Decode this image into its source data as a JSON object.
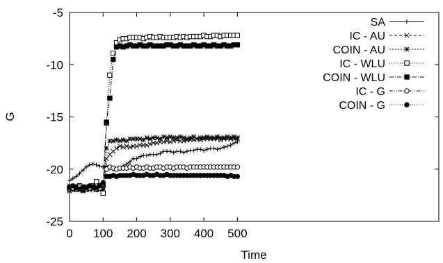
{
  "chart_data": {
    "type": "line",
    "title": "",
    "xlabel": "Time",
    "ylabel": "G",
    "xlim": [
      0,
      1100
    ],
    "ylim": [
      -25,
      -5
    ],
    "x_ticks": [
      "0",
      "100",
      "200",
      "300",
      "400",
      "500"
    ],
    "x_tick_values": [
      0,
      100,
      200,
      300,
      400,
      500
    ],
    "y_ticks": [
      "-5",
      "-10",
      "-15",
      "-20",
      "-25"
    ],
    "y_tick_values": [
      -5,
      -10,
      -15,
      -20,
      -25
    ],
    "grid": false,
    "legend_position": "top-right",
    "x": [
      0,
      10,
      20,
      30,
      40,
      50,
      60,
      70,
      80,
      90,
      100,
      110,
      120,
      130,
      140,
      150,
      160,
      170,
      180,
      190,
      200,
      210,
      220,
      230,
      240,
      250,
      260,
      270,
      280,
      290,
      300,
      310,
      320,
      330,
      340,
      350,
      360,
      370,
      380,
      390,
      400,
      410,
      420,
      430,
      440,
      450,
      460,
      470,
      480,
      490,
      500
    ],
    "series": [
      {
        "name": "SA",
        "marker": "plus",
        "dash": "",
        "values": [
          -21.1,
          -20.9,
          -20.7,
          -20.4,
          -20.1,
          -19.8,
          -19.6,
          -19.5,
          -19.6,
          -19.7,
          -19.8,
          -19.7,
          -19.9,
          -20.0,
          -20.0,
          -19.9,
          -19.7,
          -19.5,
          -19.3,
          -19.0,
          -19.0,
          -18.8,
          -18.7,
          -18.7,
          -18.6,
          -18.6,
          -18.6,
          -18.5,
          -18.3,
          -18.3,
          -18.3,
          -18.4,
          -18.3,
          -18.3,
          -18.4,
          -18.3,
          -18.2,
          -18.2,
          -18.1,
          -18.1,
          -18.2,
          -18.1,
          -18.0,
          -18.0,
          -18.1,
          -18.0,
          -17.9,
          -17.8,
          -17.7,
          -17.5,
          -17.4
        ]
      },
      {
        "name": "IC - AU",
        "marker": "x",
        "dash": "4,3",
        "values": [
          -21.6,
          -21.7,
          -21.8,
          -21.9,
          -21.7,
          -21.9,
          -22.0,
          -21.8,
          -21.9,
          -22.0,
          -22.0,
          -19.0,
          -18.6,
          -18.3,
          -18.0,
          -17.8,
          -17.9,
          -17.8,
          -17.9,
          -17.8,
          -17.8,
          -17.7,
          -17.7,
          -17.7,
          -17.6,
          -17.5,
          -17.5,
          -17.4,
          -17.4,
          -17.3,
          -17.4,
          -17.3,
          -17.2,
          -17.3,
          -17.3,
          -17.2,
          -17.2,
          -17.2,
          -17.1,
          -17.2,
          -17.1,
          -17.1,
          -17.1,
          -17.1,
          -17.1,
          -17.2,
          -17.1,
          -17.1,
          -17.1,
          -17.1,
          -17.1
        ]
      },
      {
        "name": "COIN - AU",
        "marker": "star",
        "dash": "2,2",
        "values": [
          -22.1,
          -21.9,
          -22.0,
          -21.8,
          -22.1,
          -21.9,
          -21.7,
          -21.9,
          -22.0,
          -21.8,
          -21.9,
          -18.0,
          -17.3,
          -17.3,
          -17.2,
          -17.3,
          -17.2,
          -17.3,
          -17.1,
          -17.1,
          -17.1,
          -17.1,
          -17.2,
          -17.0,
          -17.1,
          -17.0,
          -17.0,
          -17.1,
          -16.9,
          -17.0,
          -16.9,
          -17.0,
          -17.0,
          -16.9,
          -17.0,
          -17.1,
          -17.0,
          -16.9,
          -17.1,
          -17.0,
          -17.0,
          -16.9,
          -17.0,
          -17.0,
          -16.9,
          -17.0,
          -17.0,
          -16.9,
          -17.0,
          -16.9,
          -17.0
        ]
      },
      {
        "name": "IC - WLU",
        "marker": "square-open",
        "dash": "1,2",
        "values": [
          -21.9,
          -21.8,
          -21.9,
          -21.6,
          -21.8,
          -21.7,
          -21.8,
          -21.6,
          -21.2,
          -21.6,
          -22.3,
          -15.6,
          -11.0,
          -8.9,
          -7.9,
          -7.6,
          -7.5,
          -7.5,
          -7.4,
          -7.4,
          -7.4,
          -7.4,
          -7.5,
          -7.4,
          -7.3,
          -7.4,
          -7.4,
          -7.3,
          -7.4,
          -7.4,
          -7.4,
          -7.4,
          -7.3,
          -7.4,
          -7.3,
          -7.4,
          -7.3,
          -7.3,
          -7.3,
          -7.3,
          -7.2,
          -7.3,
          -7.3,
          -7.2,
          -7.2,
          -7.3,
          -7.2,
          -7.2,
          -7.2,
          -7.2,
          -7.2
        ]
      },
      {
        "name": "COIN - WLU",
        "marker": "square-filled",
        "dash": "6,2,1,2",
        "values": [
          -21.8,
          -21.9,
          -21.7,
          -21.8,
          -22.0,
          -21.9,
          -21.8,
          -21.7,
          -21.9,
          -21.8,
          -21.5,
          -15.5,
          -13.2,
          -9.5,
          -8.3,
          -8.2,
          -8.3,
          -8.2,
          -8.1,
          -8.2,
          -8.2,
          -8.1,
          -8.2,
          -8.2,
          -8.1,
          -8.2,
          -8.2,
          -8.2,
          -8.2,
          -8.1,
          -8.1,
          -8.2,
          -8.2,
          -8.1,
          -8.2,
          -8.2,
          -8.2,
          -8.1,
          -8.2,
          -8.2,
          -8.1,
          -8.2,
          -8.2,
          -8.1,
          -8.2,
          -8.2,
          -8.1,
          -8.2,
          -8.2,
          -8.1,
          -8.1
        ]
      },
      {
        "name": "IC - G",
        "marker": "circle-open",
        "dash": "5,2,1,2,1,2",
        "values": [
          -21.7,
          -21.8,
          -21.9,
          -21.7,
          -21.8,
          -21.9,
          -21.8,
          -21.7,
          -21.9,
          -21.8,
          -21.4,
          -20.0,
          -19.8,
          -19.9,
          -20.0,
          -19.9,
          -19.9,
          -19.9,
          -19.8,
          -19.9,
          -19.8,
          -19.9,
          -19.9,
          -19.8,
          -19.9,
          -19.9,
          -19.8,
          -19.8,
          -19.9,
          -19.8,
          -19.8,
          -19.9,
          -19.8,
          -19.8,
          -19.8,
          -19.9,
          -19.8,
          -19.8,
          -19.8,
          -19.8,
          -19.8,
          -19.8,
          -19.8,
          -19.8,
          -19.8,
          -19.8,
          -19.8,
          -19.8,
          -19.8,
          -19.8,
          -19.8
        ]
      },
      {
        "name": "COIN - G",
        "marker": "circle-filled",
        "dash": "1,2",
        "values": [
          -21.7,
          -21.6,
          -21.8,
          -21.9,
          -21.7,
          -21.8,
          -21.6,
          -21.7,
          -21.8,
          -21.6,
          -21.3,
          -20.7,
          -20.7,
          -20.6,
          -20.7,
          -20.6,
          -20.6,
          -20.6,
          -20.6,
          -20.5,
          -20.6,
          -20.6,
          -20.6,
          -20.5,
          -20.6,
          -20.6,
          -20.5,
          -20.6,
          -20.6,
          -20.5,
          -20.6,
          -20.6,
          -20.6,
          -20.6,
          -20.6,
          -20.6,
          -20.6,
          -20.6,
          -20.6,
          -20.6,
          -20.6,
          -20.6,
          -20.6,
          -20.6,
          -20.6,
          -20.6,
          -20.6,
          -20.7,
          -20.6,
          -20.7,
          -20.7
        ]
      }
    ]
  }
}
